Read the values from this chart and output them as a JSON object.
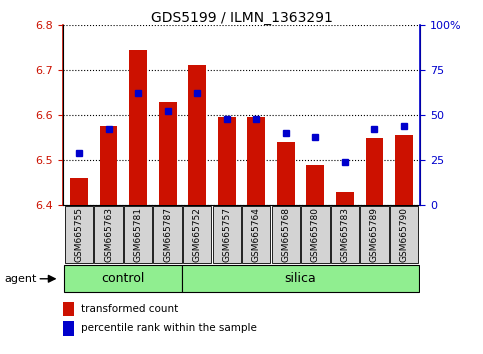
{
  "title": "GDS5199 / ILMN_1363291",
  "samples": [
    "GSM665755",
    "GSM665763",
    "GSM665781",
    "GSM665787",
    "GSM665752",
    "GSM665757",
    "GSM665764",
    "GSM665768",
    "GSM665780",
    "GSM665783",
    "GSM665789",
    "GSM665790"
  ],
  "bar_values": [
    6.46,
    6.575,
    6.745,
    6.63,
    6.71,
    6.595,
    6.595,
    6.54,
    6.49,
    6.43,
    6.55,
    6.555
  ],
  "bar_base": 6.4,
  "percentile_values": [
    29,
    42,
    62,
    52,
    62,
    48,
    48,
    40,
    38,
    24,
    42,
    44
  ],
  "ylim": [
    6.4,
    6.8
  ],
  "y2lim": [
    0,
    100
  ],
  "yticks": [
    6.4,
    6.5,
    6.6,
    6.7,
    6.8
  ],
  "y2ticks": [
    0,
    25,
    50,
    75,
    100
  ],
  "bar_color": "#CC1100",
  "dot_color": "#0000CC",
  "n_control": 4,
  "n_silica": 8,
  "control_label": "control",
  "silica_label": "silica",
  "agent_label": "agent",
  "legend_bar_label": "transformed count",
  "legend_dot_label": "percentile rank within the sample",
  "group_bg_color": "#90EE90",
  "tick_label_bg": "#D3D3D3",
  "bar_width": 0.6,
  "title_fontsize": 10,
  "axis_fontsize": 8,
  "label_fontsize": 6.5,
  "group_fontsize": 9,
  "legend_fontsize": 7.5
}
